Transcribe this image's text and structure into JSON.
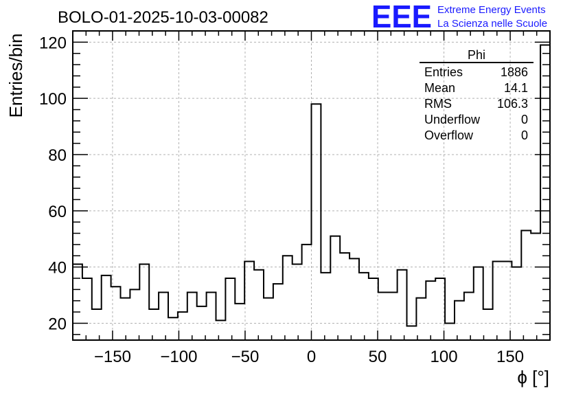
{
  "chart_data": {
    "type": "histogram",
    "title": "BOLO-01-2025-10-03-00082",
    "xlabel": "ϕ [°]",
    "ylabel": "Entries/bin",
    "xlim": [
      -180,
      180
    ],
    "ylim": [
      14,
      124
    ],
    "grid": true,
    "bin_width": 7.2,
    "x_ticks": [
      -150,
      -100,
      -50,
      0,
      50,
      100,
      150
    ],
    "x_tick_labels": [
      "−150",
      "−100",
      "−50",
      "0",
      "50",
      "100",
      "150"
    ],
    "y_ticks": [
      20,
      40,
      60,
      80,
      100,
      120
    ],
    "y_tick_labels": [
      "20",
      "40",
      "60",
      "80",
      "100",
      "120"
    ],
    "values": [
      41,
      36,
      25,
      37,
      33,
      29,
      32,
      41,
      25,
      31,
      22,
      24,
      31,
      26,
      31,
      21,
      36,
      27,
      42,
      39,
      29,
      34,
      44,
      41,
      48,
      98,
      38,
      51,
      45,
      43,
      38,
      36,
      31,
      31,
      39,
      19,
      29,
      35,
      36,
      20,
      28,
      31,
      40,
      25,
      42,
      42,
      40,
      53,
      52,
      119
    ]
  },
  "stats": {
    "title": "Phi",
    "rows": [
      {
        "label": "Entries",
        "value": "1886"
      },
      {
        "label": "Mean",
        "value": "14.1"
      },
      {
        "label": "RMS",
        "value": "106.3"
      },
      {
        "label": "Underflow",
        "value": "0"
      },
      {
        "label": "Overflow",
        "value": "0"
      }
    ]
  },
  "logo": {
    "mark": "EEE",
    "line1": "Extreme Energy Events",
    "line2": "La Scienza nelle Scuole"
  },
  "colors": {
    "line": "#000000",
    "grid": "#b0b0b0",
    "logo": "#1a1aff"
  }
}
